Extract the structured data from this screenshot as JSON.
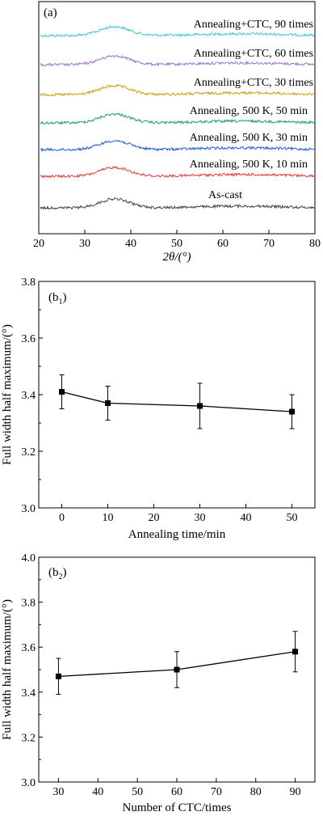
{
  "chart_data": [
    {
      "panel_label": "(a)",
      "type": "line",
      "xlabel": "2θ/(°)",
      "xlim": [
        20,
        80
      ],
      "x_ticks": [
        "20",
        "30",
        "40",
        "50",
        "60",
        "70",
        "80"
      ],
      "peak_center": 36.5,
      "series": [
        {
          "name": "Annealing+CTC, 90 times",
          "color": "#3fc8c8"
        },
        {
          "name": "Annealing+CTC, 60 times",
          "color": "#a070d0"
        },
        {
          "name": "Annealing+CTC, 30 times",
          "color": "#c8a010"
        },
        {
          "name": "Annealing, 500 K, 50 min",
          "color": "#20a060"
        },
        {
          "name": "Annealing, 500 K, 30 min",
          "color": "#1a5ad0"
        },
        {
          "name": "Annealing, 500 K, 10 min",
          "color": "#e03838"
        },
        {
          "name": "As-cast",
          "color": "#404040"
        }
      ]
    },
    {
      "panel_label_main": "(b",
      "panel_label_sub": "1",
      "panel_label_end": ")",
      "type": "line",
      "xlabel": "Annealing time/min",
      "ylabel": "Full width half maximum/(°)",
      "xlim": [
        -5,
        55
      ],
      "ylim": [
        3.0,
        3.8
      ],
      "x_ticks": [
        "0",
        "10",
        "20",
        "30",
        "40",
        "50"
      ],
      "y_ticks": [
        "3.0",
        "3.2",
        "3.4",
        "3.6",
        "3.8"
      ],
      "x": [
        0,
        10,
        30,
        50
      ],
      "y": [
        3.41,
        3.37,
        3.36,
        3.34
      ],
      "err": [
        0.06,
        0.06,
        0.08,
        0.06
      ]
    },
    {
      "panel_label_main": "(b",
      "panel_label_sub": "2",
      "panel_label_end": ")",
      "type": "line",
      "xlabel": "Number of CTC/times",
      "ylabel": "Full width half maximum/(°)",
      "xlim": [
        25,
        95
      ],
      "ylim": [
        3.0,
        4.0
      ],
      "x_ticks": [
        "30",
        "40",
        "50",
        "60",
        "70",
        "80",
        "90"
      ],
      "y_ticks": [
        "3.0",
        "3.2",
        "3.4",
        "3.6",
        "3.8",
        "4.0"
      ],
      "x": [
        30,
        60,
        90
      ],
      "y": [
        3.47,
        3.5,
        3.58
      ],
      "err": [
        0.08,
        0.08,
        0.09
      ]
    }
  ]
}
